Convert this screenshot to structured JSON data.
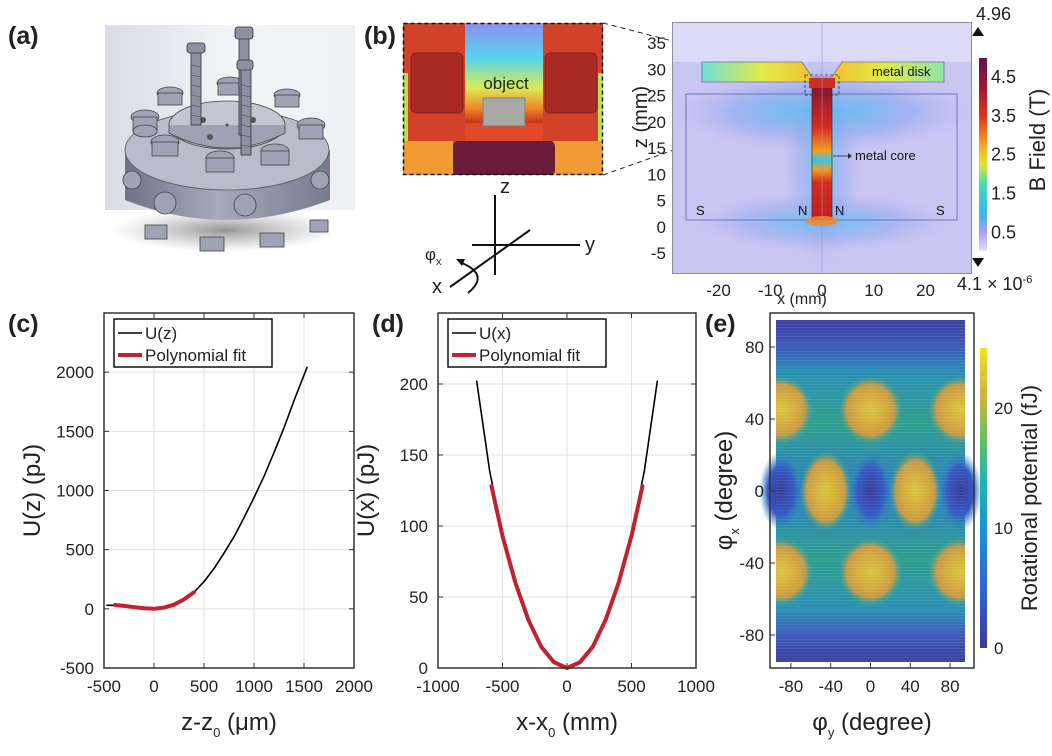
{
  "panels": {
    "a": {
      "label": "(a)",
      "description": "3D CAD render of magnetic trap assembly"
    },
    "b": {
      "label": "(b)",
      "inset_label": "object",
      "axes_labels": {
        "z": "z",
        "y": "y",
        "x": "x",
        "phi": "φ",
        "phi_sub": "x"
      },
      "annotations": {
        "metal_disk": "metal disk",
        "metal_core": "metal core",
        "S_left": "S",
        "N_left": "N",
        "N_right": "N",
        "S_right": "S"
      }
    },
    "c": {
      "label": "(c)"
    },
    "d": {
      "label": "(d)"
    },
    "e": {
      "label": "(e)"
    }
  },
  "chart_data": [
    {
      "id": "b",
      "type": "heatmap",
      "title": "",
      "xlabel": "x (mm)",
      "ylabel": "z (mm)",
      "xticks": [
        -20,
        -10,
        0,
        10,
        20
      ],
      "yticks": [
        35,
        30,
        25,
        20,
        15,
        10,
        5,
        0,
        -5
      ],
      "xlim": [
        -29,
        29
      ],
      "ylim": [
        -9,
        39
      ],
      "colorbar": {
        "label": "B Field (T)",
        "ticks": [
          0.5,
          1.5,
          2.5,
          3.5,
          4.5
        ],
        "max_label": "4.96",
        "min_label": "4.1 × 10",
        "min_exp": "-6",
        "range": [
          4.1e-06,
          4.96
        ]
      }
    },
    {
      "id": "c",
      "type": "line",
      "xlabel": "z-z",
      "xlabel_sub": "0",
      "xlabel_unit": " (μm)",
      "ylabel": "U(z) (pJ)",
      "xlim": [
        -500,
        2000
      ],
      "ylim": [
        -500,
        2500
      ],
      "xticks": [
        -500,
        0,
        500,
        1000,
        1500,
        2000
      ],
      "yticks": [
        -500,
        0,
        500,
        1000,
        1500,
        2000
      ],
      "grid": true,
      "legend": {
        "position": "top-left",
        "entries": [
          "U(z)",
          "Polynomial fit"
        ]
      },
      "series": [
        {
          "name": "U(z)",
          "color": "#000000",
          "x": [
            -470,
            -400,
            -300,
            -200,
            -100,
            0,
            100,
            200,
            300,
            400,
            500,
            600,
            700,
            800,
            900,
            1000,
            1100,
            1200,
            1300,
            1400,
            1530
          ],
          "y": [
            30,
            30,
            25,
            15,
            5,
            0,
            10,
            35,
            80,
            140,
            230,
            340,
            470,
            610,
            770,
            940,
            1120,
            1320,
            1530,
            1760,
            2040
          ]
        },
        {
          "name": "Polynomial fit",
          "color": "#c0222f",
          "x": [
            -390,
            -300,
            -200,
            -100,
            0,
            100,
            200,
            300,
            400
          ],
          "y": [
            32,
            25,
            15,
            5,
            0,
            10,
            35,
            80,
            140
          ]
        }
      ]
    },
    {
      "id": "d",
      "type": "line",
      "xlabel": "x-x",
      "xlabel_sub": "0",
      "xlabel_unit": " (mm)",
      "ylabel": "U(x) (pJ)",
      "xlim": [
        -1000,
        1000
      ],
      "ylim": [
        0,
        250
      ],
      "xticks": [
        -1000,
        -500,
        0,
        500,
        1000
      ],
      "yticks": [
        0,
        50,
        100,
        150,
        200
      ],
      "grid": true,
      "legend": {
        "position": "top-left",
        "entries": [
          "U(x)",
          "Polynomial fit"
        ]
      },
      "series": [
        {
          "name": "U(x)",
          "color": "#000000",
          "x": [
            -700,
            -600,
            -500,
            -400,
            -300,
            -200,
            -100,
            0,
            100,
            200,
            300,
            400,
            500,
            600,
            700
          ],
          "y": [
            202,
            139,
            94,
            60,
            34,
            15,
            4,
            0,
            4,
            15,
            34,
            60,
            94,
            139,
            202
          ]
        },
        {
          "name": "Polynomial fit",
          "color": "#c0222f",
          "x": [
            -585,
            -500,
            -400,
            -300,
            -200,
            -100,
            0,
            100,
            200,
            300,
            400,
            500,
            585
          ],
          "y": [
            128,
            93,
            60,
            34,
            15,
            4,
            0,
            4,
            15,
            34,
            60,
            93,
            128
          ]
        }
      ]
    },
    {
      "id": "e",
      "type": "heatmap",
      "xlabel": "φ",
      "xlabel_sub": "y",
      "xlabel_unit": " (degree)",
      "ylabel": "φ",
      "ylabel_sub": "x",
      "ylabel_unit": " (degree)",
      "xlim": [
        -95,
        95
      ],
      "ylim": [
        -95,
        95
      ],
      "xticks": [
        -80,
        -40,
        0,
        40,
        80
      ],
      "yticks": [
        80,
        40,
        0,
        -40,
        -80
      ],
      "colorbar": {
        "label": "Rotational potential (fJ)",
        "ticks": [
          0,
          10,
          20
        ],
        "range": [
          0,
          25
        ]
      },
      "peaks": [
        {
          "phi_y": -90,
          "phi_x": 45
        },
        {
          "phi_y": 0,
          "phi_x": 45
        },
        {
          "phi_y": 90,
          "phi_x": 45
        },
        {
          "phi_y": -45,
          "phi_x": 0
        },
        {
          "phi_y": 45,
          "phi_x": 0
        },
        {
          "phi_y": -90,
          "phi_x": -45
        },
        {
          "phi_y": 0,
          "phi_x": -45
        },
        {
          "phi_y": 90,
          "phi_x": -45
        }
      ],
      "minima": [
        {
          "phi_y": 0,
          "phi_x": 0
        },
        {
          "phi_y": -90,
          "phi_x": 0
        },
        {
          "phi_y": 90,
          "phi_x": 0
        }
      ]
    }
  ]
}
